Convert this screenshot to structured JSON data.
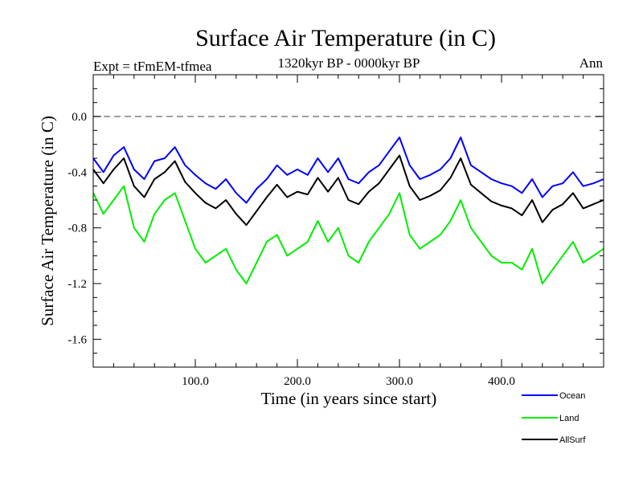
{
  "chart_data": {
    "type": "line",
    "title": "Surface Air Temperature (in C)",
    "subtitle_left": "Expt = tFmEM-tfmea",
    "subtitle_center": "1320kyr BP - 0000kyr BP",
    "subtitle_right": "Ann",
    "xlabel": "Time (in years since start)",
    "ylabel": "Surface Air Temperature (in C)",
    "xlim": [
      0,
      500
    ],
    "ylim": [
      -1.8,
      0.3
    ],
    "xticks": [
      100,
      200,
      300,
      400
    ],
    "xtick_labels": [
      "100.0",
      "200.0",
      "300.0",
      "400.0"
    ],
    "yticks": [
      0.0,
      -0.4,
      -0.8,
      -1.2,
      -1.6
    ],
    "ytick_labels": [
      "0.0",
      "-0.4",
      "-0.8",
      "-1.2",
      "-1.6"
    ],
    "reference_line": {
      "y": 0.0,
      "style": "dashed",
      "color": "#808080"
    },
    "legend_position": "bottom-right",
    "series": [
      {
        "name": "Ocean",
        "color": "#0000ff",
        "x": [
          0,
          10,
          20,
          30,
          40,
          50,
          60,
          70,
          80,
          90,
          100,
          110,
          120,
          130,
          140,
          150,
          160,
          170,
          180,
          190,
          200,
          210,
          220,
          230,
          240,
          250,
          260,
          270,
          280,
          290,
          300,
          310,
          320,
          330,
          340,
          350,
          360,
          370,
          380,
          390,
          400,
          410,
          420,
          430,
          440,
          450,
          460,
          470,
          480,
          490,
          500
        ],
        "values": [
          -0.3,
          -0.4,
          -0.28,
          -0.22,
          -0.38,
          -0.45,
          -0.32,
          -0.3,
          -0.22,
          -0.35,
          -0.42,
          -0.48,
          -0.52,
          -0.45,
          -0.55,
          -0.62,
          -0.52,
          -0.45,
          -0.35,
          -0.42,
          -0.38,
          -0.42,
          -0.3,
          -0.4,
          -0.3,
          -0.45,
          -0.48,
          -0.4,
          -0.35,
          -0.25,
          -0.15,
          -0.35,
          -0.45,
          -0.42,
          -0.38,
          -0.3,
          -0.15,
          -0.35,
          -0.4,
          -0.45,
          -0.48,
          -0.5,
          -0.55,
          -0.45,
          -0.58,
          -0.5,
          -0.48,
          -0.4,
          -0.5,
          -0.48,
          -0.45
        ]
      },
      {
        "name": "Land",
        "color": "#00ee00",
        "x": [
          0,
          10,
          20,
          30,
          40,
          50,
          60,
          70,
          80,
          90,
          100,
          110,
          120,
          130,
          140,
          150,
          160,
          170,
          180,
          190,
          200,
          210,
          220,
          230,
          240,
          250,
          260,
          270,
          280,
          290,
          300,
          310,
          320,
          330,
          340,
          350,
          360,
          370,
          380,
          390,
          400,
          410,
          420,
          430,
          440,
          450,
          460,
          470,
          480,
          490,
          500
        ],
        "values": [
          -0.55,
          -0.7,
          -0.6,
          -0.5,
          -0.8,
          -0.9,
          -0.7,
          -0.6,
          -0.55,
          -0.75,
          -0.95,
          -1.05,
          -1.0,
          -0.95,
          -1.1,
          -1.2,
          -1.05,
          -0.9,
          -0.85,
          -1.0,
          -0.95,
          -0.9,
          -0.75,
          -0.9,
          -0.8,
          -1.0,
          -1.05,
          -0.9,
          -0.8,
          -0.7,
          -0.55,
          -0.85,
          -0.95,
          -0.9,
          -0.85,
          -0.75,
          -0.6,
          -0.8,
          -0.9,
          -1.0,
          -1.05,
          -1.05,
          -1.1,
          -0.95,
          -1.2,
          -1.1,
          -1.0,
          -0.9,
          -1.05,
          -1.0,
          -0.95
        ]
      },
      {
        "name": "AllSurf",
        "color": "#000000",
        "x": [
          0,
          10,
          20,
          30,
          40,
          50,
          60,
          70,
          80,
          90,
          100,
          110,
          120,
          130,
          140,
          150,
          160,
          170,
          180,
          190,
          200,
          210,
          220,
          230,
          240,
          250,
          260,
          270,
          280,
          290,
          300,
          310,
          320,
          330,
          340,
          350,
          360,
          370,
          380,
          390,
          400,
          410,
          420,
          430,
          440,
          450,
          460,
          470,
          480,
          490,
          500
        ],
        "values": [
          -0.38,
          -0.48,
          -0.38,
          -0.3,
          -0.5,
          -0.58,
          -0.45,
          -0.4,
          -0.32,
          -0.47,
          -0.55,
          -0.62,
          -0.66,
          -0.6,
          -0.7,
          -0.78,
          -0.68,
          -0.58,
          -0.49,
          -0.58,
          -0.54,
          -0.56,
          -0.44,
          -0.54,
          -0.44,
          -0.6,
          -0.63,
          -0.54,
          -0.48,
          -0.38,
          -0.28,
          -0.5,
          -0.6,
          -0.57,
          -0.53,
          -0.44,
          -0.3,
          -0.49,
          -0.55,
          -0.61,
          -0.64,
          -0.66,
          -0.71,
          -0.6,
          -0.76,
          -0.67,
          -0.63,
          -0.55,
          -0.66,
          -0.63,
          -0.6
        ]
      }
    ]
  }
}
